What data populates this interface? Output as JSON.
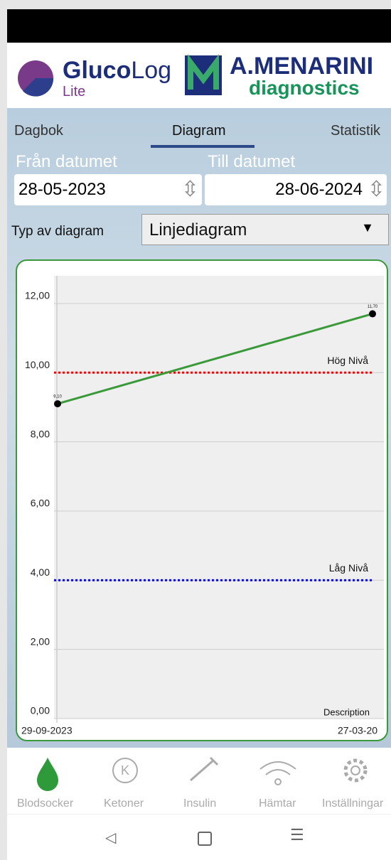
{
  "header": {
    "brand_bold": "Gluco",
    "brand_light": "Log",
    "edition": "Lite",
    "partner": "A.MENARINI",
    "partner_sub": "diagnostics"
  },
  "tabs": [
    "Dagbok",
    "Diagram",
    "Statistik"
  ],
  "filters": {
    "from_label": "Från datumet",
    "from_date": "28-05-2023",
    "to_label": "Till datumet",
    "to_date": "28-06-2024",
    "type_label": "Typ av diagram",
    "type_value": "Linjediagram"
  },
  "chart_data": {
    "type": "line",
    "x": [
      "29-09-2023",
      "27-03-20"
    ],
    "series": [
      {
        "name": "Blodsocker",
        "color": "#3a9a3a",
        "values": [
          9.1,
          11.7
        ],
        "value_labels": [
          "9,10",
          "11,70"
        ]
      }
    ],
    "ylim": [
      0,
      12.8
    ],
    "yticks": [
      {
        "value": 0,
        "label": "0,00"
      },
      {
        "value": 2,
        "label": "2,00"
      },
      {
        "value": 4,
        "label": "4,00"
      },
      {
        "value": 6,
        "label": "6,00"
      },
      {
        "value": 8,
        "label": "8,00"
      },
      {
        "value": 10,
        "label": "10,00"
      },
      {
        "value": 12,
        "label": "12,00"
      }
    ],
    "grid": true,
    "reference_lines": [
      {
        "value": 10,
        "label": "Hög Nivå",
        "color": "#e01010"
      },
      {
        "value": 4,
        "label": "Låg Nivå",
        "color": "#1010d0"
      }
    ],
    "description": "Description"
  },
  "nav": [
    "Blodsocker",
    "Ketoner",
    "Insulin",
    "Hämtar",
    "Inställningar"
  ]
}
